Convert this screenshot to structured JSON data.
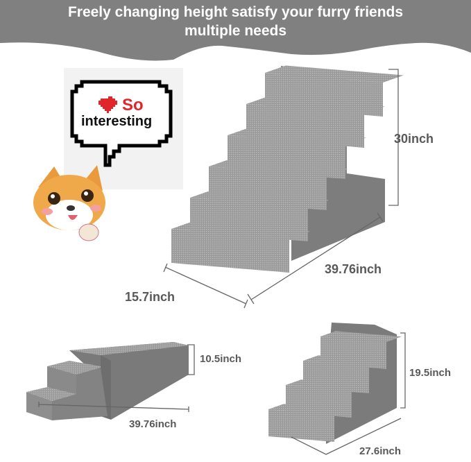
{
  "headline": {
    "line1": "Freely changing height satisfy your furry friends",
    "line2": "multiple needs"
  },
  "speech_bubble": {
    "heart_icon": "heart",
    "line1": "So",
    "line2": "interesting"
  },
  "dimensions": {
    "large_height": "30inch",
    "large_length": "39.76inch",
    "large_width": "15.7inch",
    "flat_height": "10.5inch",
    "flat_length": "39.76inch",
    "small_height": "19.5inch",
    "small_length": "27.6inch"
  },
  "colors": {
    "banner": "#808080",
    "foam": "#8a8a8a",
    "label": "#595959",
    "heart": "#e0262b"
  }
}
